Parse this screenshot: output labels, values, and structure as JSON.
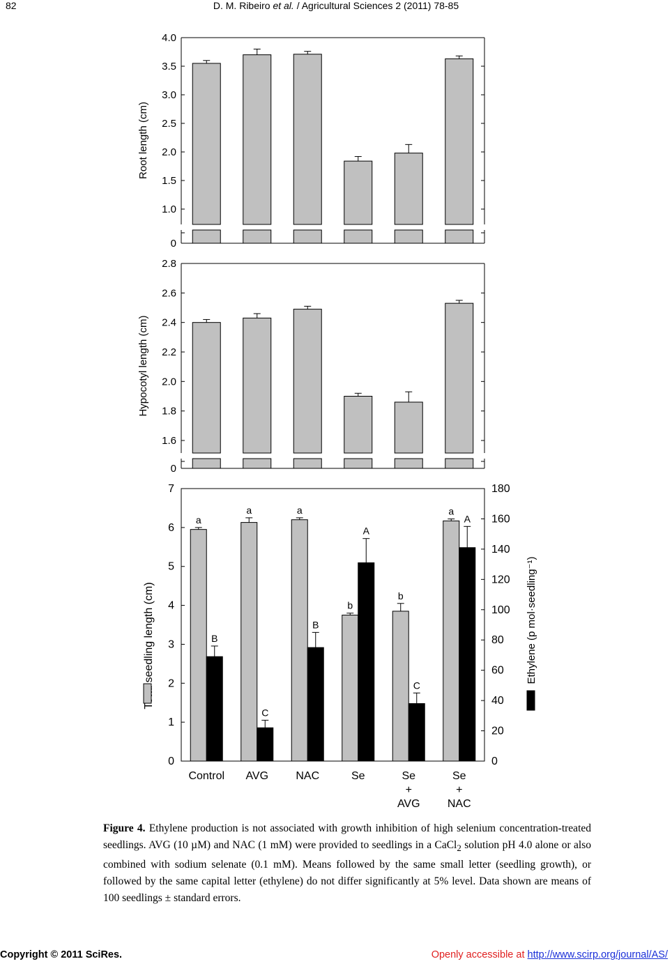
{
  "header": {
    "page_number": "82",
    "authors": "D. M. Ribeiro",
    "et_al": "et al.",
    "journal": "/ Agricultural Sciences 2 (2011) 78-85"
  },
  "chart_data": [
    {
      "type": "bar",
      "title": "",
      "ylabel": "Root length (cm)",
      "ylim": [
        0,
        4.0
      ],
      "axis_break": true,
      "yticks": [
        "0",
        "1.0",
        "1.5",
        "2.0",
        "2.5",
        "3.0",
        "3.5",
        "4.0"
      ],
      "categories": [
        "Control",
        "AVG",
        "NAC",
        "Se",
        "Se + AVG",
        "Se + NAC"
      ],
      "values": [
        3.55,
        3.7,
        3.71,
        1.84,
        1.98,
        3.63
      ],
      "errors": [
        0.05,
        0.1,
        0.05,
        0.08,
        0.15,
        0.05
      ],
      "color": "#c0c0c0"
    },
    {
      "type": "bar",
      "title": "",
      "ylabel": "Hypocotyl length (cm)",
      "ylim": [
        0,
        2.8
      ],
      "axis_break": true,
      "yticks": [
        "0",
        "1.6",
        "1.8",
        "2.0",
        "2.2",
        "2.4",
        "2.6",
        "2.8"
      ],
      "categories": [
        "Control",
        "AVG",
        "NAC",
        "Se",
        "Se + AVG",
        "Se + NAC"
      ],
      "values": [
        2.4,
        2.43,
        2.49,
        1.9,
        1.86,
        2.53
      ],
      "errors": [
        0.02,
        0.03,
        0.02,
        0.02,
        0.07,
        0.02
      ],
      "color": "#c0c0c0"
    },
    {
      "type": "bar",
      "title": "",
      "ylabel": "Total seedling length (cm)",
      "y2label": "Ethylene (p mol·seedling⁻¹)",
      "ylim": [
        0,
        7
      ],
      "y2lim": [
        0,
        180
      ],
      "yticks": [
        "0",
        "1",
        "2",
        "3",
        "4",
        "5",
        "6",
        "7"
      ],
      "y2ticks": [
        "0",
        "20",
        "40",
        "60",
        "80",
        "100",
        "120",
        "140",
        "160",
        "180"
      ],
      "categories": [
        {
          "lines": [
            "Control"
          ]
        },
        {
          "lines": [
            "AVG"
          ]
        },
        {
          "lines": [
            "NAC"
          ]
        },
        {
          "lines": [
            "Se"
          ]
        },
        {
          "lines": [
            "Se",
            "+",
            "AVG"
          ]
        },
        {
          "lines": [
            "Se",
            "+",
            "NAC"
          ]
        }
      ],
      "series": [
        {
          "name": "Total seedling length",
          "axis": "left",
          "color": "#c0c0c0",
          "values": [
            5.95,
            6.13,
            6.2,
            3.75,
            3.85,
            6.17
          ],
          "errors": [
            0.05,
            0.12,
            0.05,
            0.05,
            0.2,
            0.05
          ],
          "labels": [
            "a",
            "a",
            "a",
            "b",
            "b",
            "a"
          ]
        },
        {
          "name": "Ethylene",
          "axis": "right",
          "color": "#000000",
          "values": [
            69,
            22,
            75,
            131,
            38,
            141
          ],
          "errors": [
            7,
            5,
            10,
            16,
            7,
            14
          ],
          "labels": [
            "B",
            "C",
            "B",
            "A",
            "C",
            "A"
          ]
        }
      ]
    }
  ],
  "caption": {
    "label": "Figure 4.",
    "text_before_subscript": " Ethylene production is not associated with growth inhibition of high selenium concentration-treated seedlings. AVG (10 µM) and NAC (1 mM) were provided to seedlings in a CaCl",
    "subscript": "2",
    "text_after_subscript": " solution pH 4.0 alone or also combined with sodium selenate (0.1 mM). Means followed by the same small letter (seedling growth), or followed by the same capital letter (ethylene) do not differ significantly at 5% level. Data shown are means of 100 seedlings ± standard errors."
  },
  "footer": {
    "copyright": "Copyright © 2011 SciRes.",
    "access_text": "Openly accessible at ",
    "url": "http://www.scirp.org/journal/AS/"
  }
}
